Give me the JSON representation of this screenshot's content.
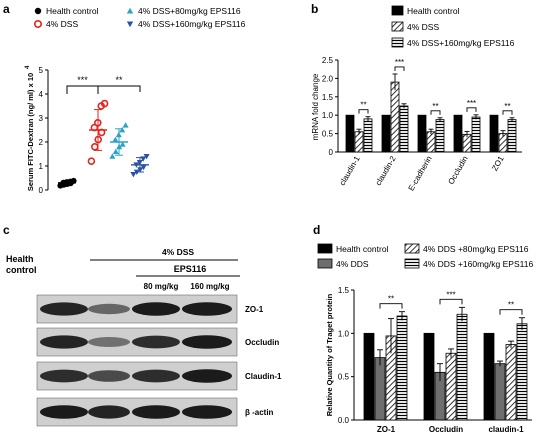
{
  "panels": {
    "a": "a",
    "b": "b",
    "c": "c",
    "d": "d"
  },
  "chart_data": [
    {
      "panel": "a",
      "type": "scatter",
      "ylabel": "Serum FITC-Dextran (ng/ ml) x 10",
      "ylabel_exp": "4",
      "ylim": [
        0,
        5
      ],
      "yticks": [
        "0",
        "1",
        "2",
        "3",
        "4",
        "5"
      ],
      "legend": [
        "Health control",
        "4% DSS",
        "4% DSS+80mg/kg EPS116",
        "4% DSS+160mg/kg EPS116"
      ],
      "series": [
        {
          "name": "Health control",
          "marker": "circle-filled",
          "color": "#000000",
          "mean": 0.3,
          "sd": 0.1,
          "points": [
            0.18,
            0.22,
            0.25,
            0.28,
            0.3,
            0.33,
            0.35,
            0.38
          ]
        },
        {
          "name": "4% DSS",
          "marker": "circle-open",
          "color": "#e3261f",
          "mean": 2.5,
          "sd": 0.85,
          "points": [
            1.2,
            1.8,
            2.1,
            2.4,
            2.6,
            2.8,
            3.5,
            3.6
          ]
        },
        {
          "name": "4% DSS+80mg/kg EPS116",
          "marker": "triangle-up",
          "color": "#2ba3c5",
          "mean": 2.0,
          "sd": 0.55,
          "points": [
            1.4,
            1.6,
            1.8,
            1.9,
            2.1,
            2.3,
            2.5,
            2.7
          ]
        },
        {
          "name": "4% DSS+160mg/kg EPS116",
          "marker": "triangle-down",
          "color": "#2a52a3",
          "mean": 1.05,
          "sd": 0.3,
          "points": [
            0.65,
            0.75,
            0.85,
            0.95,
            1.05,
            1.15,
            1.3,
            1.4
          ]
        }
      ],
      "significance": [
        {
          "from": 0,
          "to": 1,
          "label": "***"
        },
        {
          "from": 1,
          "to": 3,
          "label": "**"
        }
      ]
    },
    {
      "panel": "b",
      "type": "bar",
      "ylabel": "mRNA fold change",
      "ylim": [
        0,
        2.5
      ],
      "yticks": [
        "0",
        "0.5",
        "1.0",
        "1.5",
        "2.0",
        "2.5"
      ],
      "categories": [
        "claudin-1",
        "claudin-2",
        "E-cadherin",
        "Occludin",
        "ZO1"
      ],
      "series": [
        {
          "name": "Health control",
          "pattern": "solid",
          "values": [
            1.0,
            1.0,
            1.0,
            1.0,
            1.0
          ],
          "errors": [
            0.0,
            0.0,
            0.0,
            0.0,
            0.0
          ]
        },
        {
          "name": "4% DSS",
          "pattern": "diagonal",
          "values": [
            0.55,
            1.9,
            0.55,
            0.48,
            0.5
          ],
          "errors": [
            0.07,
            0.22,
            0.07,
            0.08,
            0.08
          ]
        },
        {
          "name": "4% DSS+160mg/kg EPS116",
          "pattern": "horizontal",
          "values": [
            0.9,
            1.25,
            0.88,
            0.95,
            0.88
          ],
          "errors": [
            0.06,
            0.06,
            0.05,
            0.06,
            0.05
          ]
        }
      ],
      "significance": [
        "**",
        "***",
        "**",
        "***",
        "**"
      ]
    },
    {
      "panel": "d",
      "type": "bar",
      "ylabel": "Relative Quantity of Traget protein",
      "ylim": [
        0,
        1.5
      ],
      "yticks": [
        "0.0",
        "0.5",
        "1.0",
        "1.5"
      ],
      "categories": [
        "ZO-1",
        "Occludin",
        "claudin-1"
      ],
      "legend": [
        "Health control",
        "4% DDS",
        "4% DDS +80mg/kg EPS116",
        "4% DDS +160mg/kg EPS116"
      ],
      "series": [
        {
          "name": "Health control",
          "pattern": "solid-black",
          "values": [
            1.0,
            1.0,
            1.0
          ],
          "errors": [
            0,
            0,
            0
          ]
        },
        {
          "name": "4% DDS",
          "pattern": "solid-gray",
          "values": [
            0.72,
            0.55,
            0.65
          ],
          "errors": [
            0.09,
            0.1,
            0.03
          ]
        },
        {
          "name": "4% DDS +80mg/kg EPS116",
          "pattern": "diagonal",
          "values": [
            0.97,
            0.77,
            0.87
          ],
          "errors": [
            0.2,
            0.05,
            0.04
          ]
        },
        {
          "name": "4% DDS +160mg/kg EPS116",
          "pattern": "horizontal",
          "values": [
            1.2,
            1.22,
            1.11
          ],
          "errors": [
            0.05,
            0.08,
            0.07
          ]
        }
      ],
      "significance": [
        "**",
        "***",
        "**"
      ]
    }
  ],
  "western_blot": {
    "group_left": "Health control",
    "group_dss": "4%  DSS",
    "group_eps": "EPS116",
    "dose_80": "80 mg/kg",
    "dose_160": "160 mg/kg",
    "bands": [
      "ZO-1",
      "Occludin",
      "Claudin-1",
      "β -actin"
    ]
  }
}
